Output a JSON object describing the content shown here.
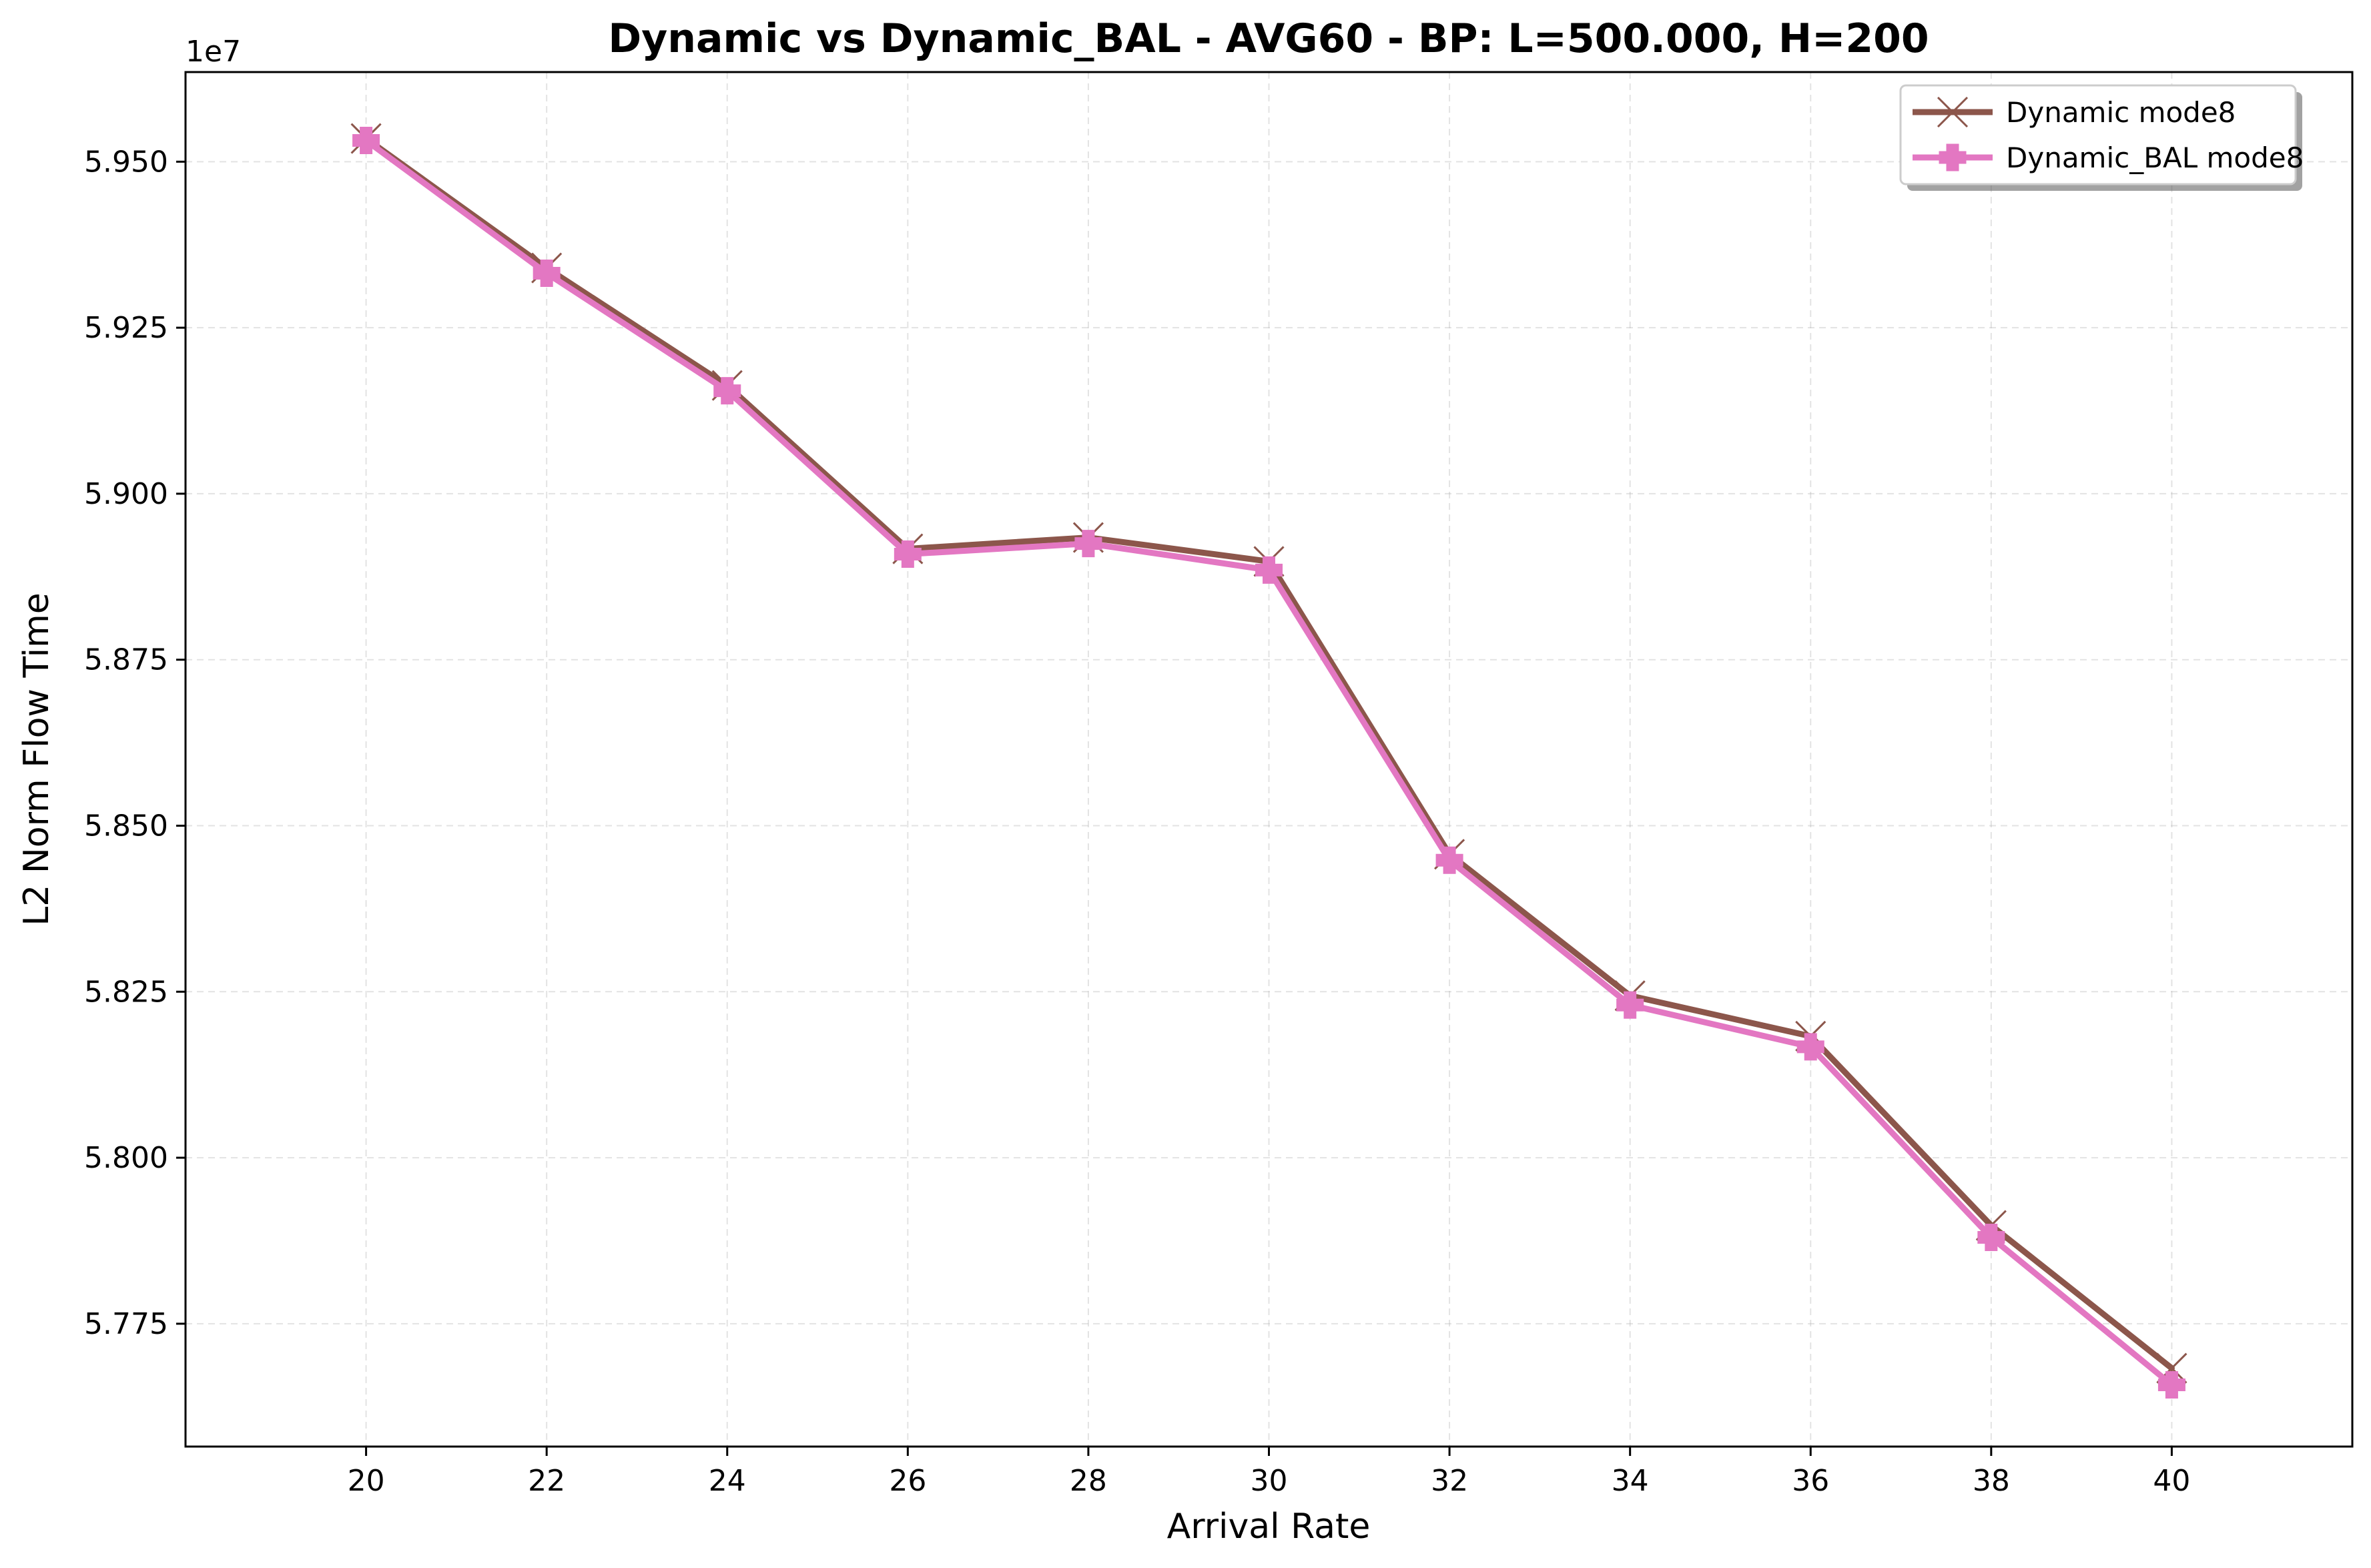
{
  "chart_data": {
    "type": "line",
    "title": "Dynamic vs Dynamic_BAL - AVG60 - BP: L=500.000, H=200",
    "xlabel": "Arrival Rate",
    "ylabel": "L2 Norm Flow Time",
    "y_offset_label": "1e7",
    "x": [
      20,
      22,
      24,
      26,
      28,
      30,
      32,
      34,
      36,
      38,
      40
    ],
    "x_ticks": [
      "20",
      "22",
      "24",
      "26",
      "28",
      "30",
      "32",
      "34",
      "36",
      "38",
      "40"
    ],
    "y_ticks": [
      "5.775",
      "5.800",
      "5.825",
      "5.850",
      "5.875",
      "5.900",
      "5.925",
      "5.950"
    ],
    "y_tick_values": [
      5.775,
      5.8,
      5.825,
      5.85,
      5.875,
      5.9,
      5.925,
      5.95
    ],
    "xlim": [
      18,
      42
    ],
    "ylim": [
      5.7565,
      5.9635
    ],
    "grid": true,
    "legend_position": "top-right",
    "series": [
      {
        "name": "Dynamic mode8",
        "color": "#8c564b",
        "marker": "x",
        "values": [
          5.9535,
          5.934,
          5.9163,
          5.8917,
          5.8934,
          5.8898,
          5.8457,
          5.8244,
          5.8183,
          5.7898,
          5.7683
        ]
      },
      {
        "name": "Dynamic_BAL mode8",
        "color": "#e377c2",
        "marker": "plus",
        "values": [
          5.9532,
          5.9332,
          5.9155,
          5.8909,
          5.8925,
          5.8885,
          5.8448,
          5.823,
          5.8167,
          5.788,
          5.7658
        ]
      }
    ]
  }
}
